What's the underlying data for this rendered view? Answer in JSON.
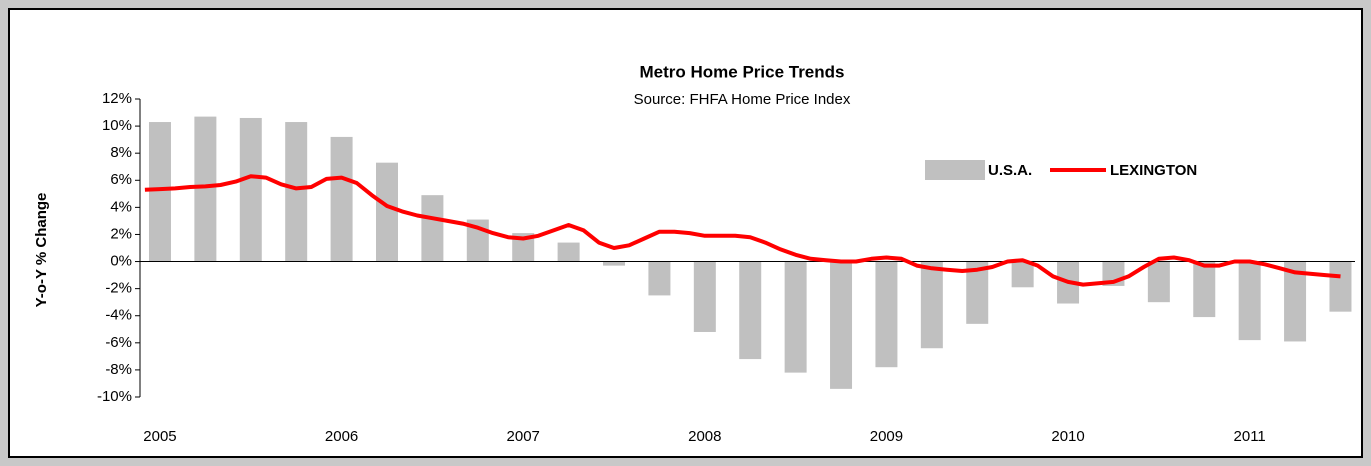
{
  "chart_data": {
    "type": "bar-line",
    "title": "Metro Home Price Trends",
    "subtitle": "Source:  FHFA Home Price Index",
    "y_label": "Y-o-Y % Change",
    "xlim": [
      2004.89,
      2011.58
    ],
    "xticks": [
      2005,
      2006,
      2007,
      2008,
      2009,
      2010,
      2011
    ],
    "ylim": [
      -10,
      12
    ],
    "yticks": [
      {
        "value": 12,
        "label": "12%"
      },
      {
        "value": 10,
        "label": "10%"
      },
      {
        "value": 8,
        "label": "8%"
      },
      {
        "value": 6,
        "label": "6%"
      },
      {
        "value": 4,
        "label": "4%"
      },
      {
        "value": 2,
        "label": "2%"
      },
      {
        "value": 0,
        "label": "0%"
      },
      {
        "value": -2,
        "label": "-2%"
      },
      {
        "value": -4,
        "label": "-4%"
      },
      {
        "value": -6,
        "label": "-6%"
      },
      {
        "value": -8,
        "label": "-8%"
      },
      {
        "value": -10,
        "label": "-10%"
      }
    ],
    "series": [
      {
        "name": "U.S.A.",
        "type": "bar",
        "color": "#c0c0c0",
        "x": [
          2005,
          2005.25,
          2005.5,
          2005.75,
          2006,
          2006.25,
          2006.5,
          2006.75,
          2007,
          2007.25,
          2007.5,
          2007.75,
          2008,
          2008.25,
          2008.5,
          2008.75,
          2009,
          2009.25,
          2009.5,
          2009.75,
          2010,
          2010.25,
          2010.5,
          2010.75,
          2011,
          2011.25,
          2011.5
        ],
        "values": [
          10.3,
          10.7,
          10.6,
          10.3,
          9.2,
          7.3,
          4.9,
          3.1,
          2.1,
          1.4,
          -0.3,
          -2.5,
          -5.2,
          -7.2,
          -8.2,
          -9.4,
          -7.8,
          -6.4,
          -4.6,
          -1.9,
          -3.1,
          -1.8,
          -3.0,
          -4.1,
          -5.8,
          -5.9,
          -3.7
        ]
      },
      {
        "name": "LEXINGTON",
        "type": "line",
        "color": "#ff0000",
        "x": [
          2004.917,
          2005,
          2005.083,
          2005.167,
          2005.25,
          2005.333,
          2005.417,
          2005.5,
          2005.583,
          2005.667,
          2005.75,
          2005.833,
          2005.917,
          2006,
          2006.083,
          2006.167,
          2006.25,
          2006.333,
          2006.417,
          2006.5,
          2006.583,
          2006.667,
          2006.75,
          2006.833,
          2006.917,
          2007,
          2007.083,
          2007.167,
          2007.25,
          2007.333,
          2007.417,
          2007.5,
          2007.583,
          2007.667,
          2007.75,
          2007.833,
          2007.917,
          2008,
          2008.083,
          2008.167,
          2008.25,
          2008.333,
          2008.417,
          2008.5,
          2008.583,
          2008.667,
          2008.75,
          2008.833,
          2008.917,
          2009,
          2009.083,
          2009.167,
          2009.25,
          2009.333,
          2009.417,
          2009.5,
          2009.583,
          2009.667,
          2009.75,
          2009.833,
          2009.917,
          2010,
          2010.083,
          2010.167,
          2010.25,
          2010.333,
          2010.417,
          2010.5,
          2010.583,
          2010.667,
          2010.75,
          2010.833,
          2010.917,
          2011,
          2011.083,
          2011.167,
          2011.25,
          2011.333,
          2011.417,
          2011.5
        ],
        "values": [
          5.3,
          5.35,
          5.4,
          5.5,
          5.55,
          5.65,
          5.9,
          6.3,
          6.2,
          5.7,
          5.4,
          5.5,
          6.1,
          6.2,
          5.8,
          4.9,
          4.1,
          3.7,
          3.4,
          3.2,
          3.0,
          2.8,
          2.5,
          2.1,
          1.8,
          1.7,
          1.9,
          2.3,
          2.7,
          2.3,
          1.4,
          1.0,
          1.2,
          1.7,
          2.2,
          2.2,
          2.1,
          1.9,
          1.9,
          1.9,
          1.8,
          1.4,
          0.9,
          0.5,
          0.2,
          0.1,
          0.0,
          0.0,
          0.2,
          0.3,
          0.2,
          -0.3,
          -0.5,
          -0.6,
          -0.7,
          -0.6,
          -0.4,
          0.0,
          0.1,
          -0.3,
          -1.1,
          -1.5,
          -1.7,
          -1.6,
          -1.5,
          -1.1,
          -0.4,
          0.2,
          0.3,
          0.1,
          -0.3,
          -0.3,
          0.0,
          0.0,
          -0.2,
          -0.5,
          -0.8,
          -0.9,
          -1.0,
          -1.1
        ]
      }
    ]
  }
}
